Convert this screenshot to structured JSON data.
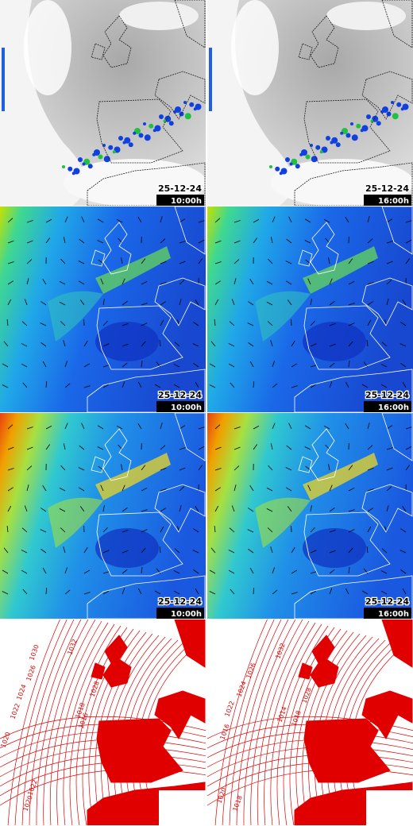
{
  "rows": [
    [
      {
        "date": "25-12-24",
        "time": "10:00h"
      },
      {
        "date": "25-12-24",
        "time": "16:00h"
      }
    ],
    [
      {
        "date": "25-12-24",
        "time": "10:00h"
      },
      {
        "date": "25-12-24",
        "time": "16:00h"
      }
    ],
    [
      {
        "date": "25-12-24",
        "time": "10:00h"
      },
      {
        "date": "25-12-24",
        "time": "16:00h"
      }
    ],
    [
      {
        "isobar_labels": [
          1030,
          1032,
          1026,
          1024,
          1028,
          1022,
          1018,
          1016,
          1006,
          1020,
          1022,
          1020
        ]
      },
      {
        "isobar_labels": [
          1032,
          1026,
          1024,
          1022,
          1028,
          1018,
          1014,
          1016,
          1020,
          1018
        ]
      }
    ]
  ]
}
